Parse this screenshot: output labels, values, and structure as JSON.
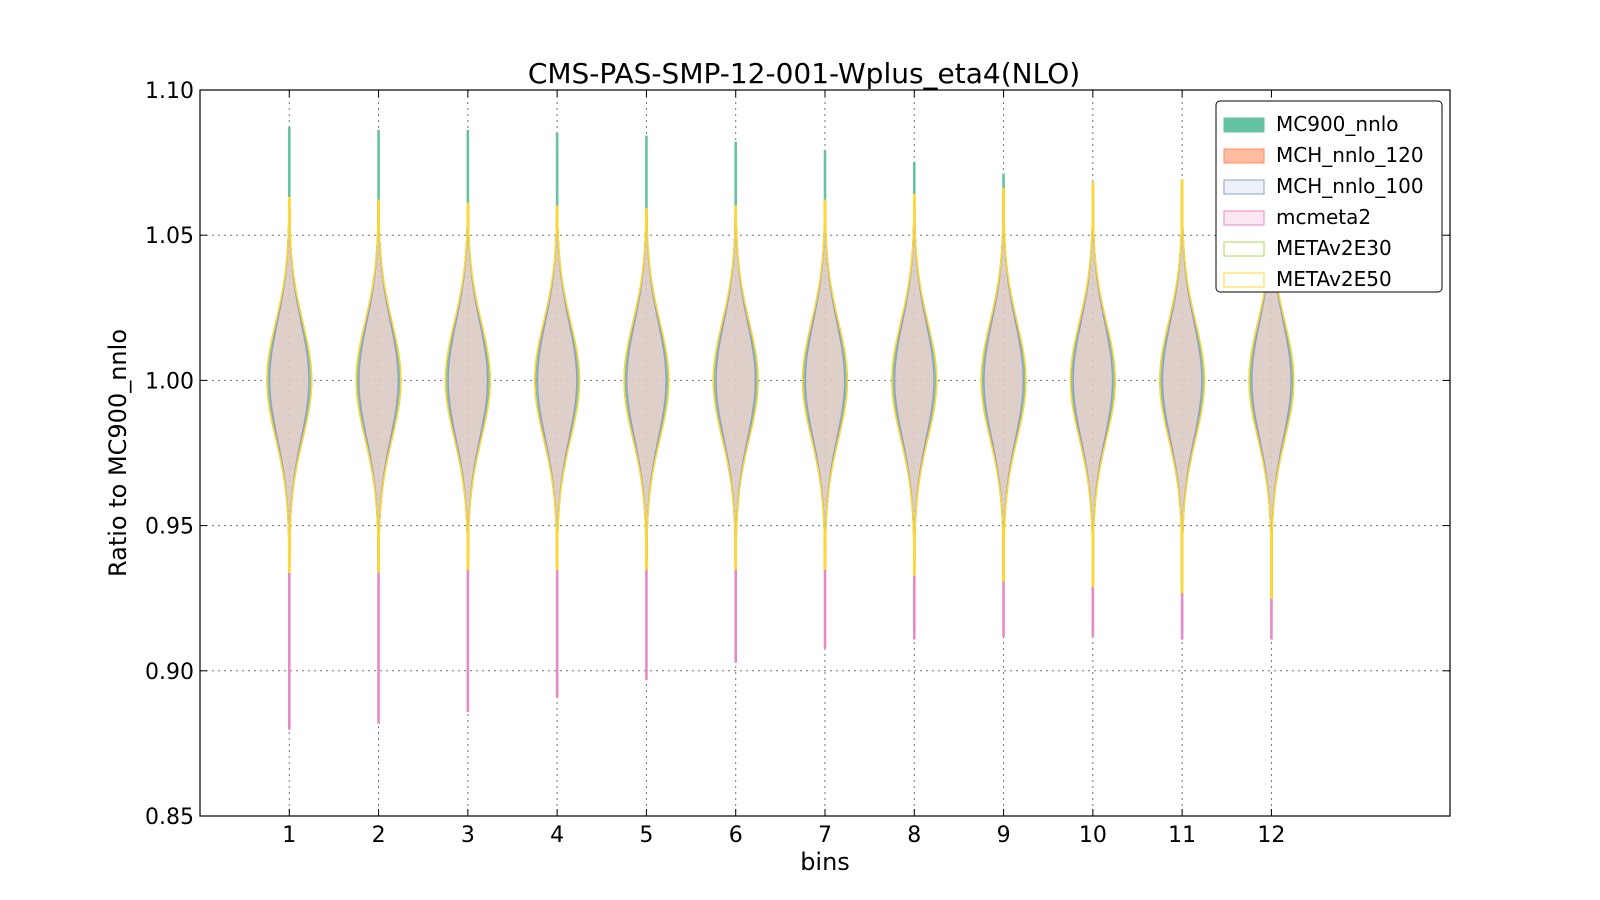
{
  "chart_data": {
    "type": "violin",
    "title": "CMS-PAS-SMP-12-001-Wplus_eta4(NLO)",
    "xlabel": "bins",
    "ylabel": "Ratio to MC900_nnlo",
    "categories": [
      "1",
      "2",
      "3",
      "4",
      "5",
      "6",
      "7",
      "8",
      "9",
      "10",
      "11",
      "12"
    ],
    "x": [
      1,
      2,
      3,
      4,
      5,
      6,
      7,
      8,
      9,
      10,
      11,
      12
    ],
    "xlim": [
      0,
      14
    ],
    "ylim": [
      0.85,
      1.1
    ],
    "yticks": [
      0.85,
      0.9,
      0.95,
      1.0,
      1.05,
      1.1
    ],
    "ytick_labels": [
      "0.85",
      "0.90",
      "0.95",
      "1.00",
      "1.05",
      "1.10"
    ],
    "grid": true,
    "legend_position": "top-right",
    "series": [
      {
        "name": "MC900_nnlo",
        "fill": "#66c2a5",
        "edge": "#66c2a5",
        "filled": true,
        "min": [
          0.935,
          0.935,
          0.936,
          0.936,
          0.937,
          0.937,
          0.937,
          0.935,
          0.933,
          0.932,
          0.93,
          0.928
        ],
        "max": [
          1.087,
          1.086,
          1.086,
          1.085,
          1.084,
          1.082,
          1.079,
          1.075,
          1.071,
          1.065,
          1.058,
          1.052
        ],
        "width": [
          0.24,
          0.24,
          0.24,
          0.24,
          0.24,
          0.24,
          0.24,
          0.24,
          0.24,
          0.24,
          0.24,
          0.24
        ]
      },
      {
        "name": "MCH_nnlo_120",
        "fill": "#fc8d62",
        "edge": "#fc8d62",
        "filled": true,
        "min": [
          0.94,
          0.94,
          0.94,
          0.94,
          0.94,
          0.94,
          0.94,
          0.94,
          0.94,
          0.94,
          0.94,
          0.94
        ],
        "max": [
          1.058,
          1.057,
          1.057,
          1.056,
          1.055,
          1.055,
          1.056,
          1.058,
          1.06,
          1.062,
          1.063,
          1.064
        ],
        "width": [
          0.22,
          0.22,
          0.22,
          0.22,
          0.22,
          0.22,
          0.22,
          0.22,
          0.22,
          0.22,
          0.22,
          0.22
        ]
      },
      {
        "name": "MCH_nnlo_100",
        "fill": "#e3e8f4",
        "edge": "#8da0cb",
        "filled": true,
        "min": [
          0.94,
          0.94,
          0.94,
          0.94,
          0.94,
          0.94,
          0.94,
          0.94,
          0.94,
          0.94,
          0.94,
          0.94
        ],
        "max": [
          1.058,
          1.057,
          1.057,
          1.056,
          1.055,
          1.055,
          1.056,
          1.058,
          1.06,
          1.062,
          1.063,
          1.064
        ],
        "width": [
          0.22,
          0.22,
          0.22,
          0.22,
          0.22,
          0.22,
          0.22,
          0.22,
          0.22,
          0.22,
          0.22,
          0.22
        ]
      },
      {
        "name": "mcmeta2",
        "fill": "#fce8f3",
        "edge": "#e78ac3",
        "filled": false,
        "min": [
          0.88,
          0.882,
          0.886,
          0.891,
          0.897,
          0.903,
          0.908,
          0.911,
          0.912,
          0.912,
          0.911,
          0.911
        ],
        "max": [
          1.063,
          1.062,
          1.061,
          1.06,
          1.059,
          1.06,
          1.062,
          1.064,
          1.066,
          1.068,
          1.069,
          1.07
        ],
        "width": [
          0.25,
          0.25,
          0.25,
          0.25,
          0.25,
          0.25,
          0.25,
          0.25,
          0.25,
          0.25,
          0.25,
          0.25
        ]
      },
      {
        "name": "METAv2E30",
        "fill": "#ffffff",
        "edge": "#a6d854",
        "filled": false,
        "min": [
          0.934,
          0.934,
          0.935,
          0.935,
          0.935,
          0.935,
          0.935,
          0.933,
          0.931,
          0.929,
          0.927,
          0.925
        ],
        "max": [
          1.063,
          1.062,
          1.061,
          1.06,
          1.059,
          1.06,
          1.062,
          1.064,
          1.066,
          1.068,
          1.069,
          1.07
        ],
        "width": [
          0.25,
          0.25,
          0.25,
          0.25,
          0.25,
          0.25,
          0.25,
          0.25,
          0.25,
          0.25,
          0.25,
          0.25
        ]
      },
      {
        "name": "METAv2E50",
        "fill": "#ffffff",
        "edge": "#ffd92f",
        "filled": false,
        "min": [
          0.934,
          0.934,
          0.935,
          0.935,
          0.935,
          0.935,
          0.935,
          0.933,
          0.931,
          0.929,
          0.927,
          0.925
        ],
        "max": [
          1.063,
          1.062,
          1.061,
          1.06,
          1.059,
          1.06,
          1.062,
          1.064,
          1.066,
          1.068,
          1.069,
          1.07
        ],
        "width": [
          0.25,
          0.25,
          0.25,
          0.25,
          0.25,
          0.25,
          0.25,
          0.25,
          0.25,
          0.25,
          0.25,
          0.25
        ]
      }
    ]
  }
}
